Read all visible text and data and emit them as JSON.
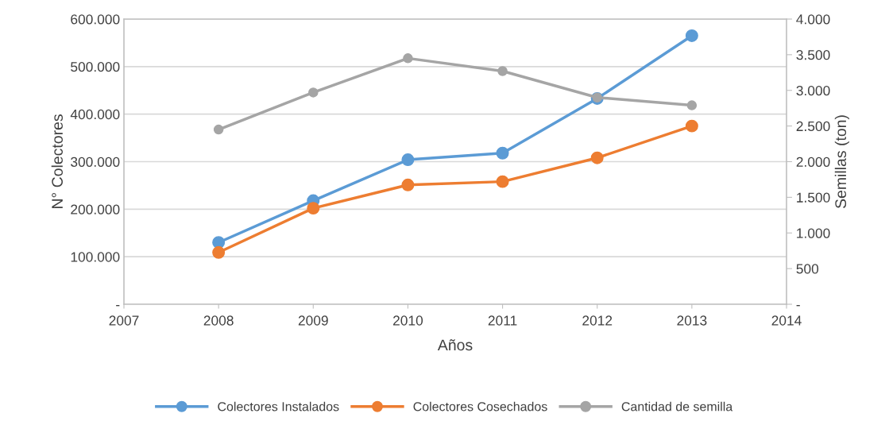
{
  "chart_data": {
    "type": "line",
    "xlabel": "Años",
    "ylabel": "N° Colectores",
    "y2label": "Semillas (ton)",
    "x": [
      2008,
      2009,
      2010,
      2011,
      2012,
      2013
    ],
    "series": [
      {
        "name": "Colectores Instalados",
        "color": "#5b9bd5",
        "values": [
          130000,
          218000,
          304000,
          318000,
          433000,
          565000
        ]
      },
      {
        "name": "Colectores Cosechados",
        "color": "#ed7d31",
        "values": [
          109000,
          202000,
          251000,
          258000,
          308000,
          375000
        ]
      },
      {
        "name": "Cantidad de semilla",
        "color": "#a5a5a5",
        "axis": "y2",
        "values": [
          2450,
          2970,
          3450,
          3270,
          2900,
          2790
        ]
      }
    ],
    "xlim": [
      2007,
      2014
    ],
    "xticks": [
      2007,
      2008,
      2009,
      2010,
      2011,
      2012,
      2013,
      2014
    ],
    "ylim": [
      0,
      600000
    ],
    "yticks": [
      {
        "value": 0,
        "label": "-"
      },
      {
        "value": 100000,
        "label": "100.000"
      },
      {
        "value": 200000,
        "label": "200.000"
      },
      {
        "value": 300000,
        "label": "300.000"
      },
      {
        "value": 400000,
        "label": "400.000"
      },
      {
        "value": 500000,
        "label": "500.000"
      },
      {
        "value": 600000,
        "label": "600.000"
      }
    ],
    "y2lim": [
      0,
      4000
    ],
    "y2ticks": [
      {
        "value": 0,
        "label": "-"
      },
      500,
      {
        "value": 1000,
        "label": "1.000"
      },
      {
        "value": 1500,
        "label": "1.500"
      },
      {
        "value": 2000,
        "label": "2.000"
      },
      {
        "value": 2500,
        "label": "2.500"
      },
      {
        "value": 3000,
        "label": "3.000"
      },
      {
        "value": 3500,
        "label": "3.500"
      },
      {
        "value": 4000,
        "label": "4.000"
      }
    ],
    "grid": "y",
    "legend": "bottom",
    "marker": "circle",
    "line_style": "solid"
  }
}
